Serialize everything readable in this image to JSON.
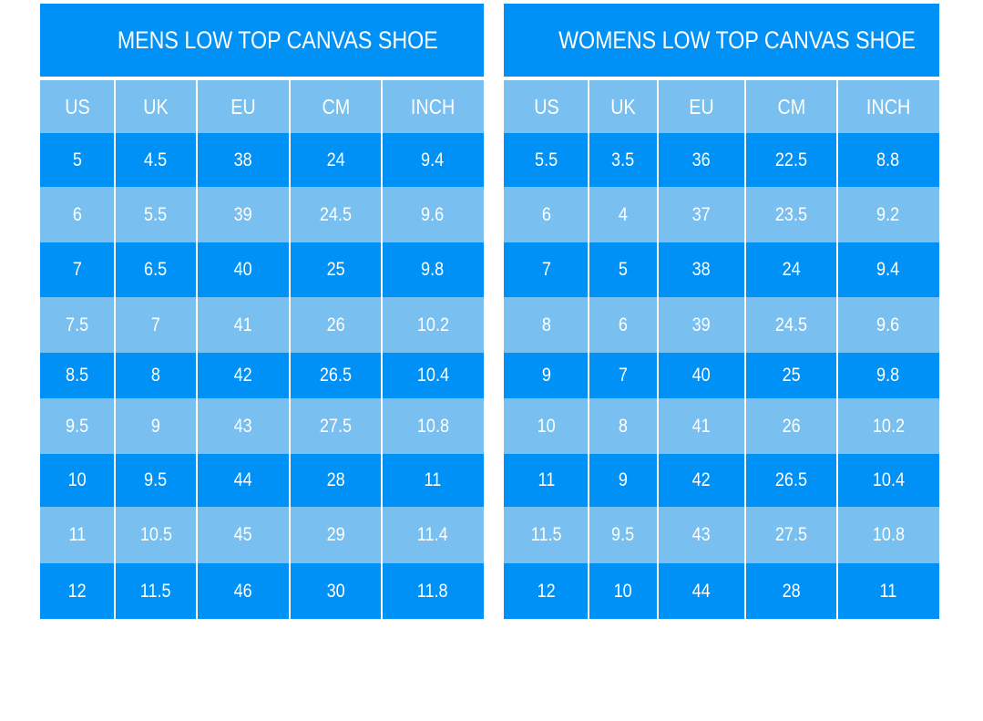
{
  "colors": {
    "dark": "#0091f7",
    "light": "#79bff0",
    "text": "#ffffff"
  },
  "tables": [
    {
      "title": "MENS LOW TOP CANVAS SHOE",
      "columns": [
        "US",
        "UK",
        "EU",
        "CM",
        "INCH"
      ],
      "rows": [
        [
          "5",
          "4.5",
          "38",
          "24",
          "9.4"
        ],
        [
          "6",
          "5.5",
          "39",
          "24.5",
          "9.6"
        ],
        [
          "7",
          "6.5",
          "40",
          "25",
          "9.8"
        ],
        [
          "7.5",
          "7",
          "41",
          "26",
          "10.2"
        ],
        [
          "8.5",
          "8",
          "42",
          "26.5",
          "10.4"
        ],
        [
          "9.5",
          "9",
          "43",
          "27.5",
          "10.8"
        ],
        [
          "10",
          "9.5",
          "44",
          "28",
          "11"
        ],
        [
          "11",
          "10.5",
          "45",
          "29",
          "11.4"
        ],
        [
          "12",
          "11.5",
          "46",
          "30",
          "11.8"
        ]
      ]
    },
    {
      "title": "WOMENS LOW TOP CANVAS SHOE",
      "columns": [
        "US",
        "UK",
        "EU",
        "CM",
        "INCH"
      ],
      "rows": [
        [
          "5.5",
          "3.5",
          "36",
          "22.5",
          "8.8"
        ],
        [
          "6",
          "4",
          "37",
          "23.5",
          "9.2"
        ],
        [
          "7",
          "5",
          "38",
          "24",
          "9.4"
        ],
        [
          "8",
          "6",
          "39",
          "24.5",
          "9.6"
        ],
        [
          "9",
          "7",
          "40",
          "25",
          "9.8"
        ],
        [
          "10",
          "8",
          "41",
          "26",
          "10.2"
        ],
        [
          "11",
          "9",
          "42",
          "26.5",
          "10.4"
        ],
        [
          "11.5",
          "9.5",
          "43",
          "27.5",
          "10.8"
        ],
        [
          "12",
          "10",
          "44",
          "28",
          "11"
        ]
      ]
    }
  ]
}
